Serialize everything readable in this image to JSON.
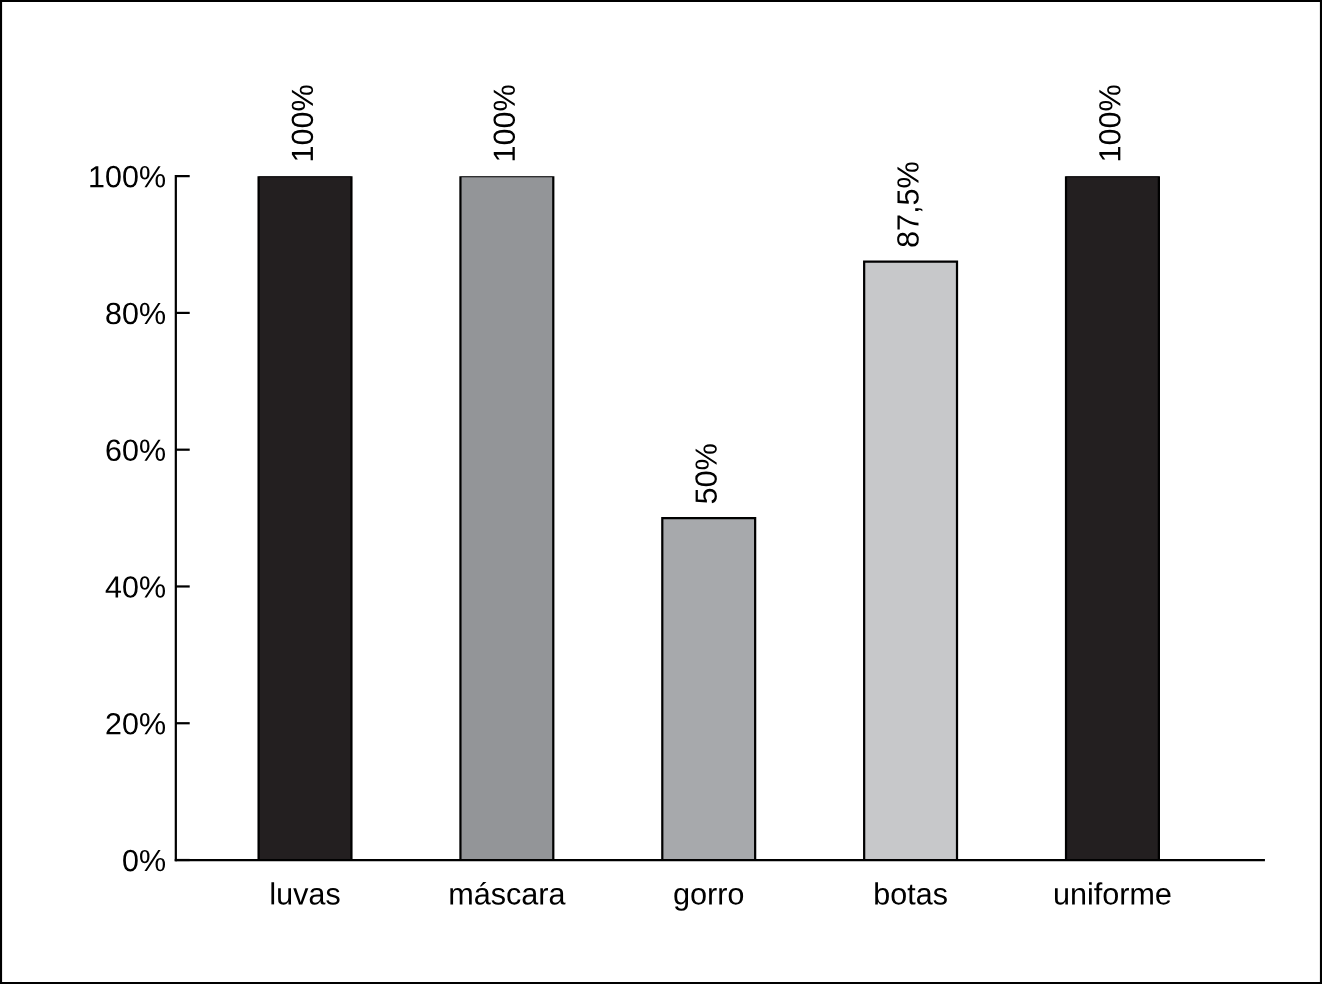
{
  "chart_data": {
    "type": "bar",
    "categories": [
      "luvas",
      "máscara",
      "gorro",
      "botas",
      "uniforme"
    ],
    "values": [
      100,
      100,
      50,
      87.5,
      100
    ],
    "colors": [
      "#231f20",
      "#939598",
      "#a7a9ac",
      "#c7c8ca",
      "#231f20"
    ],
    "value_labels": [
      "100%",
      "100%",
      "50%",
      "87,5%",
      "100%"
    ],
    "ylim": [
      0,
      100
    ],
    "yticks": [
      {
        "value": 0,
        "label": "0%"
      },
      {
        "value": 20,
        "label": "20%"
      },
      {
        "value": 40,
        "label": "40%"
      },
      {
        "value": 60,
        "label": "60%"
      },
      {
        "value": 80,
        "label": "80%"
      },
      {
        "value": 100,
        "label": "100%"
      }
    ],
    "grid": false
  }
}
